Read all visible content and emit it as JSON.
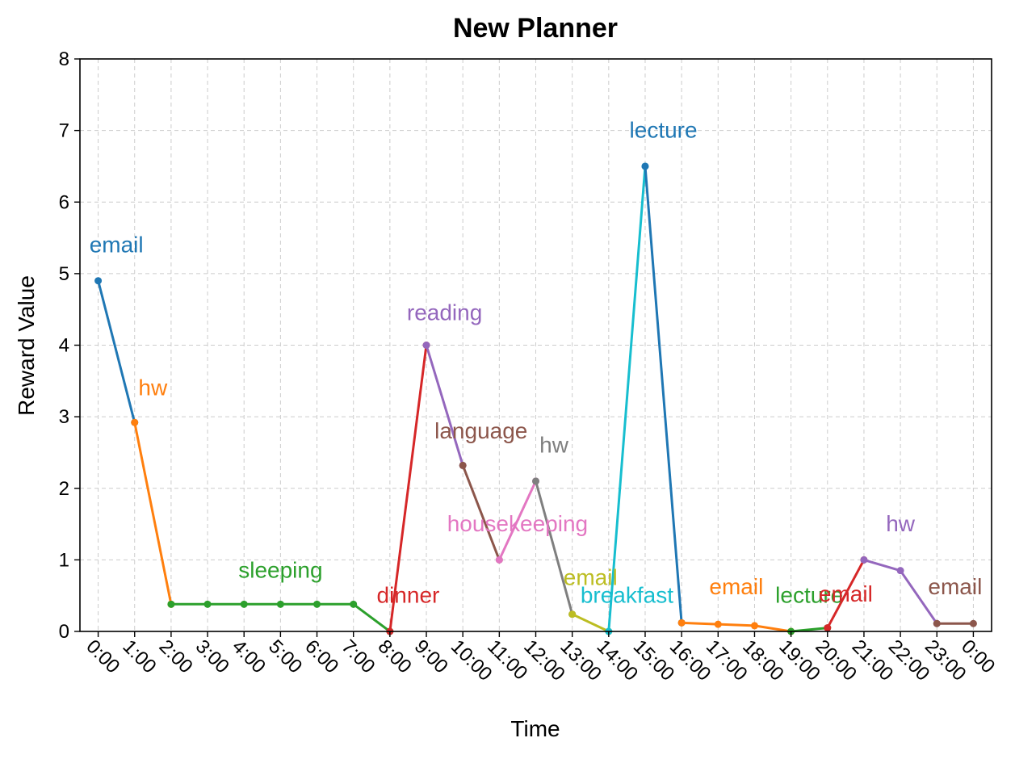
{
  "chart_data": {
    "type": "line",
    "title": "New Planner",
    "xlabel": "Time",
    "ylabel": "Reward Value",
    "ylim": [
      0,
      8
    ],
    "yticks": [
      0,
      1,
      2,
      3,
      4,
      5,
      6,
      7,
      8
    ],
    "xticks": [
      "0:00",
      "1:00",
      "2:00",
      "3:00",
      "4:00",
      "5:00",
      "6:00",
      "7:00",
      "8:00",
      "9:00",
      "10:00",
      "11:00",
      "12:00",
      "13:00",
      "14:00",
      "15:00",
      "16:00",
      "17:00",
      "18:00",
      "19:00",
      "20:00",
      "21:00",
      "22:00",
      "23:00",
      "0:00"
    ],
    "grid": true,
    "series": [
      {
        "name": "email",
        "color": "#1f77b4",
        "x": [
          0,
          1
        ],
        "y": [
          4.9,
          2.92
        ],
        "label_at": [
          0.5,
          5.4
        ]
      },
      {
        "name": "hw",
        "color": "#ff7f0e",
        "x": [
          1,
          2
        ],
        "y": [
          2.92,
          0.38
        ],
        "label_at": [
          1.5,
          3.4
        ]
      },
      {
        "name": "sleeping",
        "color": "#2ca02c",
        "x": [
          2,
          3,
          4,
          5,
          6,
          7,
          8
        ],
        "y": [
          0.38,
          0.38,
          0.38,
          0.38,
          0.38,
          0.38,
          0.0
        ],
        "label_at": [
          5.0,
          0.85
        ]
      },
      {
        "name": "dinner",
        "color": "#d62728",
        "x": [
          8,
          9
        ],
        "y": [
          0.0,
          4.0
        ],
        "label_at": [
          8.5,
          0.5
        ]
      },
      {
        "name": "reading",
        "color": "#9467bd",
        "x": [
          9,
          10
        ],
        "y": [
          4.0,
          2.32
        ],
        "label_at": [
          9.5,
          4.45
        ]
      },
      {
        "name": "language",
        "color": "#8c564b",
        "x": [
          10,
          11
        ],
        "y": [
          2.32,
          1.0
        ],
        "label_at": [
          10.5,
          2.8
        ]
      },
      {
        "name": "housekeeping",
        "color": "#e377c2",
        "x": [
          11,
          12
        ],
        "y": [
          1.0,
          2.1
        ],
        "label_at": [
          11.5,
          1.5
        ]
      },
      {
        "name": "hw",
        "color": "#7f7f7f",
        "x": [
          12,
          13
        ],
        "y": [
          2.1,
          0.24
        ],
        "label_at": [
          12.5,
          2.6
        ]
      },
      {
        "name": "email",
        "color": "#bcbd22",
        "x": [
          13,
          14
        ],
        "y": [
          0.24,
          0.0
        ],
        "label_at": [
          13.5,
          0.75
        ]
      },
      {
        "name": "breakfast",
        "color": "#17becf",
        "x": [
          14,
          15
        ],
        "y": [
          0.0,
          6.5
        ],
        "label_at": [
          14.5,
          0.5
        ]
      },
      {
        "name": "lecture",
        "color": "#1f77b4",
        "x": [
          15,
          16
        ],
        "y": [
          6.5,
          0.12
        ],
        "label_at": [
          15.5,
          7.0
        ]
      },
      {
        "name": "email",
        "color": "#ff7f0e",
        "x": [
          16,
          17,
          18,
          19
        ],
        "y": [
          0.12,
          0.1,
          0.08,
          0.0
        ],
        "label_at": [
          17.5,
          0.62
        ]
      },
      {
        "name": "lecture",
        "color": "#2ca02c",
        "x": [
          19,
          20
        ],
        "y": [
          0.0,
          0.05
        ],
        "label_at": [
          19.5,
          0.5
        ]
      },
      {
        "name": "email",
        "color": "#d62728",
        "x": [
          20,
          21
        ],
        "y": [
          0.05,
          1.0
        ],
        "label_at": [
          20.5,
          0.52
        ]
      },
      {
        "name": "hw",
        "color": "#9467bd",
        "x": [
          21,
          22,
          23
        ],
        "y": [
          1.0,
          0.85,
          0.11
        ],
        "label_at": [
          22.0,
          1.5
        ]
      },
      {
        "name": "email",
        "color": "#8c564b",
        "x": [
          23,
          24
        ],
        "y": [
          0.11,
          0.11
        ],
        "label_at": [
          23.5,
          0.62
        ]
      }
    ]
  }
}
